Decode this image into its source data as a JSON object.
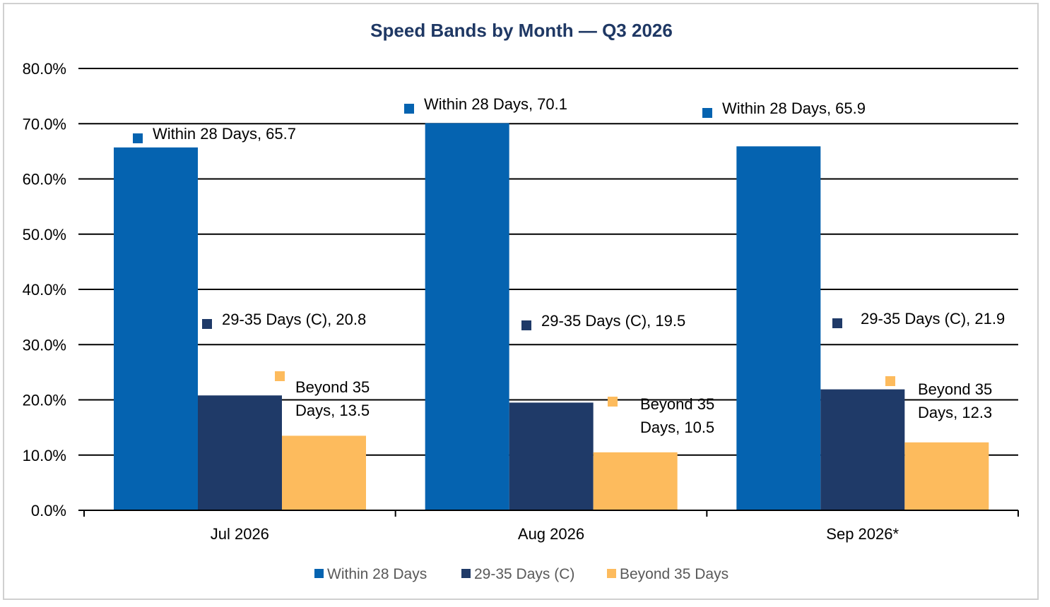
{
  "colors": {
    "within": "#0563b0",
    "mid": "#1f3a68",
    "beyond": "#fdbb5d",
    "title": "#1f3864",
    "grid": "#000000",
    "text": "#000000",
    "legend_text": "#595959"
  },
  "chart_data": {
    "type": "bar",
    "title": "Speed Bands by Month — Q3 2026",
    "categories": [
      "Jul 2026",
      "Aug 2026",
      "Sep 2026*"
    ],
    "series": [
      {
        "name": "Within 28 Days",
        "values": [
          65.7,
          70.1,
          65.9
        ],
        "data_labels": [
          "Within 28 Days, 65.7",
          "Within 28 Days, 70.1",
          "Within 28 Days, 65.9"
        ]
      },
      {
        "name": "29-35 Days (C)",
        "values": [
          20.8,
          19.5,
          21.9
        ],
        "data_labels": [
          "29-35 Days (C), 20.8",
          "29-35 Days (C), 19.5",
          "29-35 Days (C), 21.9"
        ]
      },
      {
        "name": "Beyond 35 Days",
        "values": [
          13.5,
          10.5,
          12.3
        ],
        "data_labels": [
          [
            "Beyond 35",
            "Days, 13.5"
          ],
          [
            "Beyond 35",
            "Days, 10.5"
          ],
          [
            "Beyond 35",
            "Days, 12.3"
          ]
        ]
      }
    ],
    "y_ticks": [
      "0.0%",
      "10.0%",
      "20.0%",
      "30.0%",
      "40.0%",
      "50.0%",
      "60.0%",
      "70.0%",
      "80.0%"
    ],
    "ylim": [
      0,
      80
    ],
    "grid": true,
    "legend_position": "bottom"
  }
}
